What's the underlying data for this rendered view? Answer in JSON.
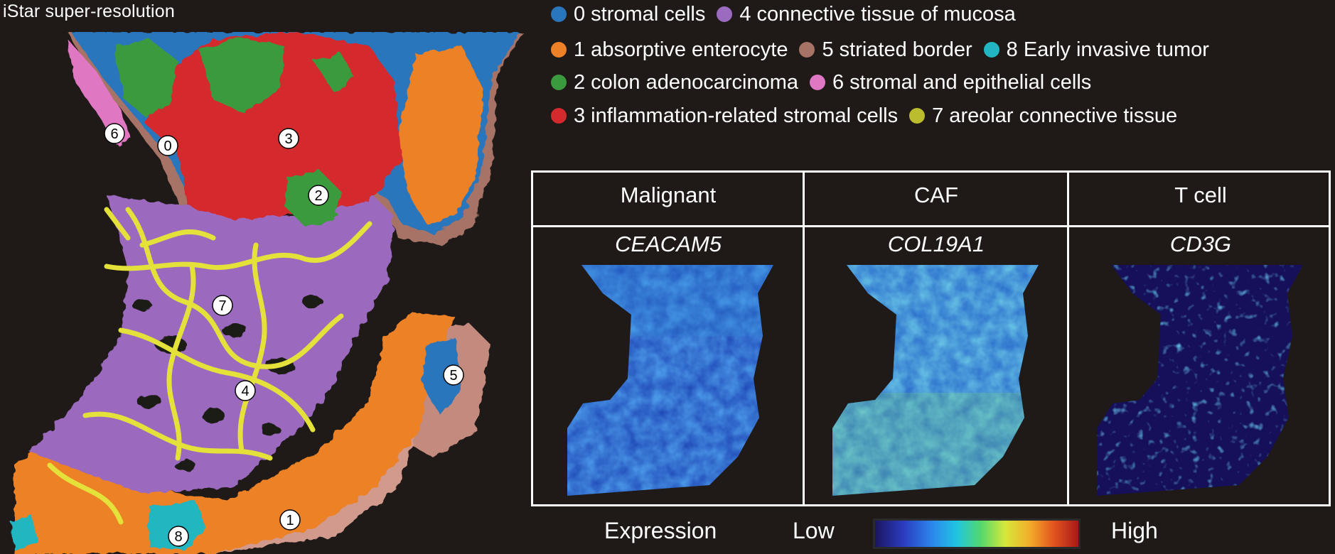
{
  "title": "iStar super-resolution",
  "legend": {
    "rows": [
      [
        {
          "id": "0",
          "label": "0 stromal cells",
          "color": "#2a76bd"
        },
        {
          "id": "4",
          "label": "4 connective tissue of mucosa",
          "color": "#9b6bbf"
        }
      ],
      [
        {
          "id": "1",
          "label": "1 absorptive enterocyte",
          "color": "#ec8128"
        },
        {
          "id": "5",
          "label": "5 striated border",
          "color": "#a67366"
        },
        {
          "id": "8",
          "label": "8 Early invasive tumor",
          "color": "#21b6c1"
        }
      ],
      [
        {
          "id": "2",
          "label": "2 colon adenocarcinoma",
          "color": "#3a9a3e"
        },
        {
          "id": "6",
          "label": "6 stromal and epithelial cells",
          "color": "#df77c2"
        }
      ],
      [
        {
          "id": "3",
          "label": "3 inflammation-related stromal cells",
          "color": "#d42a2d"
        },
        {
          "id": "7",
          "label": "7 areolar connective tissue",
          "color": "#bcbd2e"
        }
      ]
    ]
  },
  "map_labels": [
    "0",
    "1",
    "2",
    "3",
    "4",
    "5",
    "6",
    "7",
    "8"
  ],
  "panels": [
    {
      "cell_type": "Malignant",
      "gene": "CEACAM5"
    },
    {
      "cell_type": "CAF",
      "gene": "COL19A1"
    },
    {
      "cell_type": "T cell",
      "gene": "CD3G"
    }
  ],
  "colorbar": {
    "title": "Expression",
    "low": "Low",
    "high": "High"
  }
}
